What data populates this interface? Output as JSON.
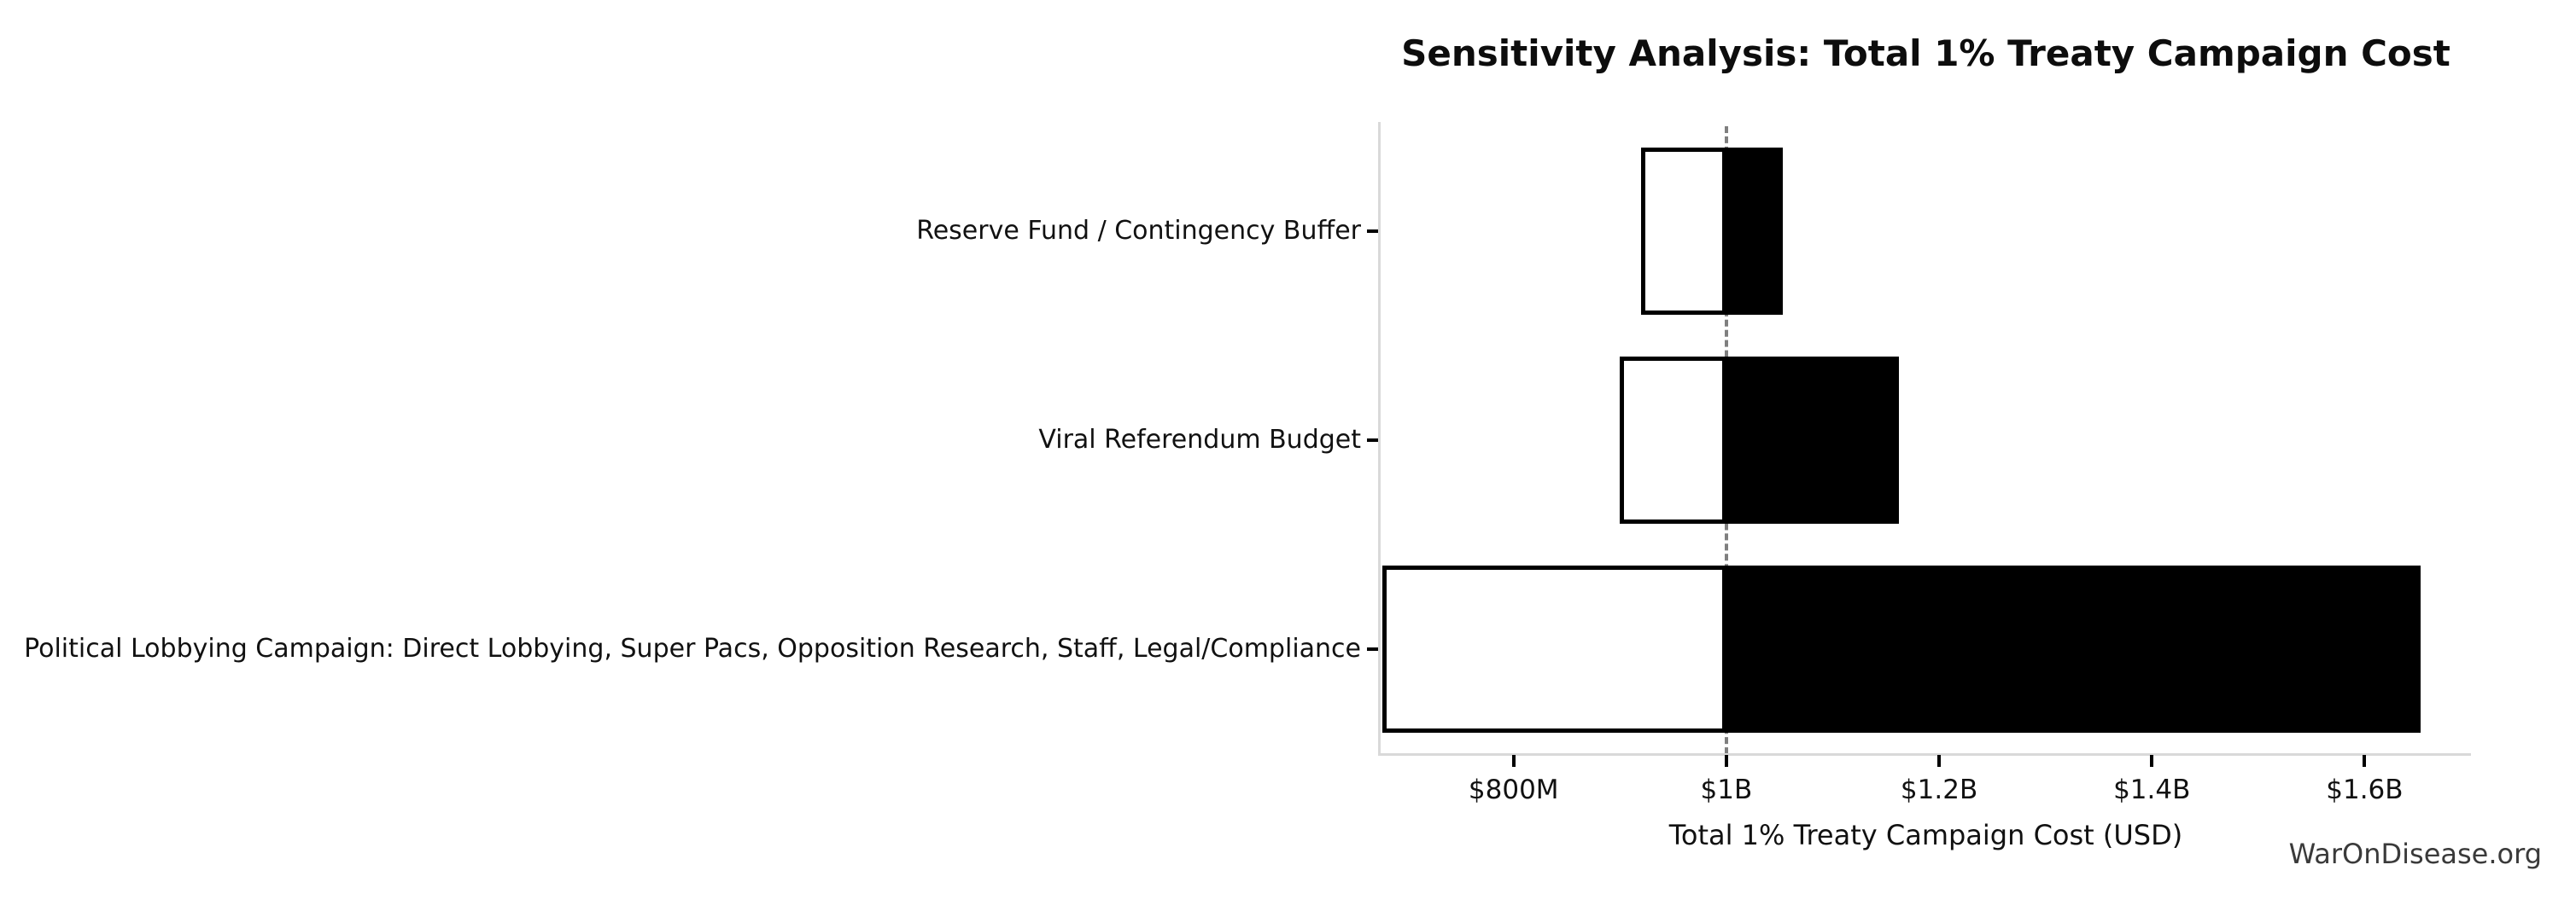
{
  "title": "Sensitivity Analysis: Total 1% Treaty Campaign Cost",
  "watermark": "WarOnDisease.org",
  "chart_data": {
    "type": "bar",
    "subtype": "tornado-horizontal",
    "title": "Sensitivity Analysis: Total 1% Treaty Campaign Cost",
    "xlabel": "Total 1% Treaty Campaign Cost (USD)",
    "unit": "millions USD",
    "baseline_value": 1000,
    "categories": [
      "Reserve Fund / Contingency Buffer",
      "Viral Referendum Budget",
      "Political Lobbying Campaign: Direct Lobbying, Super Pacs, Opposition Research, Staff, Legal/Compliance"
    ],
    "bars": [
      {
        "label": "Reserve Fund / Contingency Buffer",
        "low": 920,
        "high": 1053
      },
      {
        "label": "Viral Referendum Budget",
        "low": 900,
        "high": 1162
      },
      {
        "label": "Political Lobbying Campaign: Direct Lobbying, Super Pacs, Opposition Research, Staff, Legal/Compliance",
        "low": 677,
        "high": 1653
      }
    ],
    "xlim": [
      675,
      1700
    ],
    "xticks": [
      {
        "value": 800,
        "label": "$800M"
      },
      {
        "value": 1000,
        "label": "$1B"
      },
      {
        "value": 1200,
        "label": "$1.2B"
      },
      {
        "value": 1400,
        "label": "$1.4B"
      },
      {
        "value": 1600,
        "label": "$1.6B"
      }
    ],
    "baseline_line_style": "dashed",
    "grid": false,
    "legend": "none",
    "colors": {
      "low_fill": "#ffffff",
      "high_fill": "#000000",
      "bar_edge": "#000000",
      "baseline": "#7f7f7f",
      "spine": "#d9d9d9"
    }
  }
}
